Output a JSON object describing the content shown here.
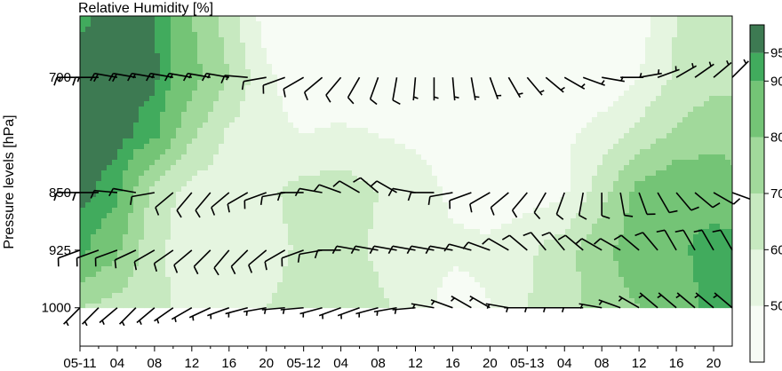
{
  "chart_data": {
    "type": "heatmap",
    "title": "Relative Humidity [%]",
    "ylabel": "Pressure levels [hPa]",
    "xlabel": "",
    "x_ticks": [
      "05-11",
      "04",
      "08",
      "12",
      "16",
      "20",
      "05-12",
      "04",
      "08",
      "12",
      "16",
      "20",
      "05-13",
      "04",
      "08",
      "12",
      "16",
      "20"
    ],
    "x_tick_hours": [
      0,
      4,
      8,
      12,
      16,
      20,
      24,
      28,
      32,
      36,
      40,
      44,
      48,
      52,
      56,
      60,
      64,
      68
    ],
    "x_range_hours": [
      0,
      70
    ],
    "y_levels": [
      700,
      850,
      925,
      1000
    ],
    "y_range": [
      620,
      1050
    ],
    "colorbar": {
      "ticks": [
        50,
        60,
        70,
        80,
        90,
        95
      ],
      "bands": [
        {
          "from": 40,
          "to": 50,
          "color": "#f7fcf5"
        },
        {
          "from": 50,
          "to": 60,
          "color": "#e5f5e0"
        },
        {
          "from": 60,
          "to": 70,
          "color": "#c7e9c0"
        },
        {
          "from": 70,
          "to": 80,
          "color": "#a1d99b"
        },
        {
          "from": 80,
          "to": 90,
          "color": "#74c476"
        },
        {
          "from": 90,
          "to": 95,
          "color": "#41ab5d"
        },
        {
          "from": 95,
          "to": 100,
          "color": "#3d7a52"
        }
      ]
    },
    "rh_grid": {
      "hours": [
        0,
        4,
        8,
        12,
        16,
        20,
        24,
        28,
        32,
        36,
        40,
        44,
        48,
        52,
        56,
        60,
        64,
        68,
        70
      ],
      "levels": [
        620,
        700,
        775,
        850,
        925,
        1000
      ],
      "values": [
        [
          94,
          97,
          96,
          80,
          65,
          45,
          42,
          42,
          42,
          42,
          42,
          42,
          42,
          42,
          42,
          45,
          60,
          68,
          68
        ],
        [
          97,
          97,
          96,
          84,
          70,
          52,
          45,
          42,
          42,
          42,
          42,
          42,
          42,
          42,
          42,
          50,
          62,
          66,
          66
        ],
        [
          97,
          97,
          92,
          72,
          58,
          52,
          50,
          52,
          50,
          48,
          45,
          45,
          45,
          48,
          55,
          64,
          72,
          78,
          78
        ],
        [
          97,
          92,
          66,
          55,
          55,
          58,
          64,
          66,
          60,
          55,
          48,
          45,
          45,
          48,
          66,
          84,
          90,
          85,
          82
        ],
        [
          92,
          82,
          62,
          55,
          52,
          56,
          62,
          64,
          58,
          55,
          52,
          52,
          58,
          66,
          78,
          86,
          88,
          94,
          95
        ],
        [
          70,
          66,
          62,
          58,
          55,
          60,
          64,
          68,
          62,
          55,
          45,
          50,
          60,
          66,
          74,
          80,
          86,
          92,
          95
        ]
      ]
    },
    "wind_barbs": [
      {
        "level": 700,
        "hours": [
          0,
          2,
          4,
          6,
          8,
          10,
          12,
          14,
          16,
          18,
          20,
          22,
          24,
          26,
          28,
          30,
          32,
          34,
          36,
          38,
          40,
          42,
          44,
          46,
          48,
          50,
          52,
          54,
          56,
          58,
          60,
          62,
          64,
          66,
          68,
          70
        ],
        "direction_deg": [
          270,
          270,
          280,
          280,
          280,
          280,
          280,
          280,
          280,
          275,
          260,
          250,
          240,
          230,
          220,
          210,
          200,
          190,
          185,
          180,
          175,
          170,
          160,
          150,
          140,
          130,
          120,
          110,
          100,
          90,
          80,
          70,
          60,
          55,
          50,
          45
        ],
        "speed_kt": [
          15,
          15,
          20,
          20,
          15,
          15,
          15,
          15,
          15,
          15,
          10,
          10,
          10,
          10,
          10,
          10,
          10,
          10,
          5,
          5,
          5,
          5,
          5,
          5,
          5,
          5,
          5,
          5,
          5,
          5,
          5,
          5,
          5,
          5,
          5,
          5
        ]
      },
      {
        "level": 850,
        "hours": [
          0,
          2,
          4,
          6,
          8,
          10,
          12,
          14,
          16,
          18,
          20,
          22,
          24,
          26,
          28,
          30,
          32,
          34,
          36,
          38,
          40,
          42,
          44,
          46,
          48,
          50,
          52,
          54,
          56,
          58,
          60,
          62,
          64,
          66,
          68,
          70
        ],
        "direction_deg": [
          270,
          270,
          275,
          280,
          260,
          230,
          220,
          220,
          230,
          240,
          250,
          260,
          270,
          280,
          290,
          300,
          310,
          300,
          280,
          270,
          260,
          250,
          240,
          230,
          220,
          210,
          200,
          190,
          180,
          170,
          160,
          150,
          140,
          130,
          120,
          110
        ],
        "speed_kt": [
          10,
          10,
          10,
          10,
          10,
          10,
          10,
          10,
          10,
          10,
          10,
          10,
          10,
          10,
          10,
          10,
          10,
          10,
          10,
          10,
          10,
          10,
          10,
          10,
          10,
          10,
          10,
          10,
          10,
          10,
          10,
          10,
          10,
          10,
          10,
          10
        ]
      },
      {
        "level": 925,
        "hours": [
          0,
          2,
          4,
          6,
          8,
          10,
          12,
          14,
          16,
          18,
          20,
          22,
          24,
          26,
          28,
          30,
          32,
          34,
          36,
          38,
          40,
          42,
          44,
          46,
          48,
          50,
          52,
          54,
          56,
          58,
          60,
          62,
          64,
          66,
          68,
          70
        ],
        "direction_deg": [
          250,
          250,
          250,
          245,
          240,
          235,
          230,
          225,
          220,
          225,
          230,
          240,
          250,
          260,
          270,
          280,
          280,
          280,
          280,
          280,
          280,
          285,
          290,
          300,
          310,
          320,
          320,
          310,
          300,
          300,
          310,
          320,
          330,
          330,
          330,
          330
        ],
        "speed_kt": [
          10,
          10,
          10,
          10,
          10,
          10,
          10,
          10,
          10,
          10,
          10,
          10,
          10,
          10,
          10,
          10,
          10,
          10,
          10,
          10,
          10,
          10,
          10,
          10,
          10,
          10,
          10,
          10,
          10,
          10,
          10,
          10,
          10,
          10,
          10,
          10
        ]
      },
      {
        "level": 1000,
        "hours": [
          0,
          2,
          4,
          6,
          8,
          10,
          12,
          14,
          16,
          18,
          20,
          22,
          24,
          26,
          28,
          30,
          32,
          34,
          36,
          38,
          40,
          42,
          44,
          46,
          48,
          50,
          52,
          54,
          56,
          58,
          60,
          62,
          64,
          66,
          68,
          70
        ],
        "direction_deg": [
          225,
          225,
          230,
          225,
          230,
          235,
          240,
          245,
          250,
          255,
          260,
          265,
          265,
          255,
          250,
          250,
          255,
          260,
          265,
          280,
          290,
          300,
          300,
          280,
          270,
          270,
          270,
          270,
          280,
          290,
          300,
          310,
          310,
          310,
          310,
          310
        ],
        "speed_kt": [
          5,
          5,
          5,
          5,
          5,
          5,
          5,
          5,
          5,
          5,
          5,
          5,
          5,
          5,
          5,
          5,
          5,
          5,
          5,
          5,
          5,
          5,
          5,
          5,
          5,
          5,
          5,
          5,
          5,
          5,
          5,
          5,
          5,
          5,
          5,
          5
        ]
      }
    ]
  }
}
